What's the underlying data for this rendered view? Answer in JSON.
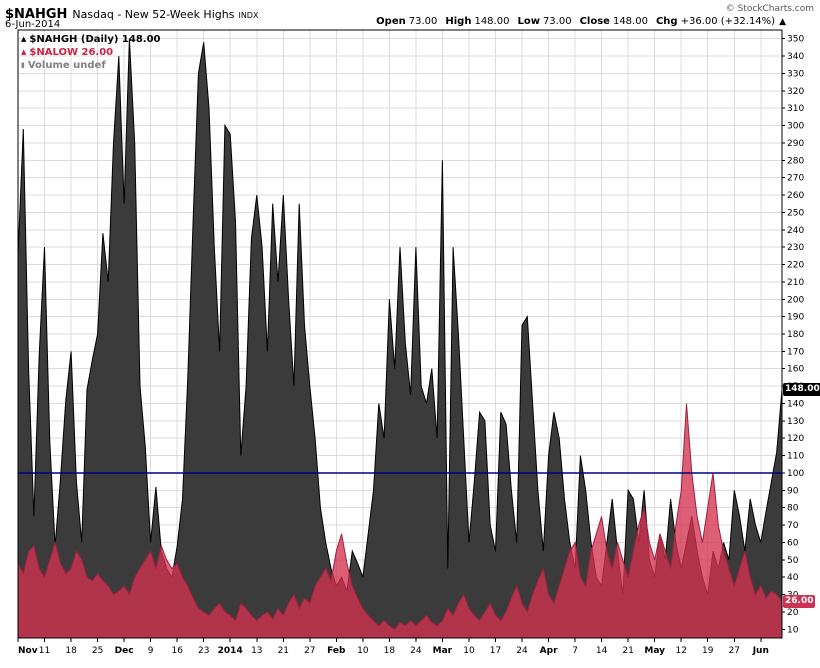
{
  "header": {
    "symbol": "$NAHGH",
    "name": "Nasdaq - New 52-Week Highs",
    "exchange": "INDX",
    "date": "6-Jun-2014",
    "copyright": "© StockCharts.com",
    "ohlc": [
      {
        "label": "Open",
        "value": "73.00"
      },
      {
        "label": "High",
        "value": "148.00"
      },
      {
        "label": "Low",
        "value": "73.00"
      },
      {
        "label": "Close",
        "value": "148.00"
      },
      {
        "label": "Chg",
        "value": "+36.00 (+32.14%)"
      }
    ],
    "chg_direction": "▲"
  },
  "legend": [
    {
      "label": "$NAHGH (Daily) 148.00",
      "color": "#000000",
      "glyph": "▲",
      "icon": "area-series-icon"
    },
    {
      "label": "$NALOW 26.00",
      "color": "#cc2244",
      "glyph": "▲",
      "icon": "area-series-icon"
    },
    {
      "label": "Volume undef",
      "color": "#808080",
      "glyph": "▮",
      "icon": "volume-bars-icon"
    }
  ],
  "price_markers": [
    {
      "value": "148.00",
      "bg": "#000000",
      "fg": "#ffffff",
      "y_value": 148
    },
    {
      "value": "26.00",
      "bg": "#cc3355",
      "fg": "#ffffff",
      "y_value": 26
    }
  ],
  "chart_data": {
    "type": "area",
    "title": "$NAHGH Nasdaq - New 52-Week Highs INDX",
    "xlabel": "",
    "ylabel": "",
    "ylim": [
      5,
      355
    ],
    "grid": true,
    "legend_position": "top-left",
    "y_ticks": [
      10,
      20,
      30,
      40,
      50,
      60,
      70,
      80,
      90,
      100,
      110,
      120,
      130,
      140,
      150,
      160,
      170,
      180,
      190,
      200,
      210,
      220,
      230,
      240,
      250,
      260,
      270,
      280,
      290,
      300,
      310,
      320,
      330,
      340,
      350
    ],
    "x_tick_labels": [
      "Nov",
      "11",
      "18",
      "25",
      "Dec",
      "9",
      "16",
      "23",
      "2014",
      "13",
      "21",
      "27",
      "Feb",
      "10",
      "18",
      "24",
      "Mar",
      "10",
      "17",
      "24",
      "Apr",
      "7",
      "14",
      "21",
      "May",
      "12",
      "19",
      "27",
      "Jun"
    ],
    "x_tick_bold": [
      true,
      false,
      false,
      false,
      true,
      false,
      false,
      false,
      true,
      false,
      false,
      false,
      true,
      false,
      false,
      false,
      true,
      false,
      false,
      false,
      true,
      false,
      false,
      false,
      true,
      false,
      false,
      false,
      true
    ],
    "x_tick_day_step": 5,
    "hline": {
      "value": 100,
      "color": "#000080"
    },
    "series": [
      {
        "name": "$NAHGH",
        "fill": "#3b3b3b",
        "stroke": "#000000",
        "values": [
          225,
          298,
          160,
          75,
          168,
          230,
          118,
          58,
          96,
          142,
          170,
          95,
          60,
          148,
          165,
          180,
          238,
          210,
          290,
          340,
          255,
          350,
          290,
          150,
          115,
          60,
          92,
          55,
          45,
          40,
          58,
          85,
          155,
          245,
          330,
          348,
          310,
          230,
          170,
          300,
          295,
          245,
          110,
          150,
          235,
          260,
          230,
          170,
          255,
          210,
          260,
          200,
          150,
          255,
          185,
          150,
          120,
          80,
          60,
          45,
          35,
          40,
          32,
          55,
          48,
          40,
          65,
          90,
          140,
          120,
          200,
          160,
          230,
          175,
          145,
          230,
          150,
          140,
          160,
          120,
          280,
          45,
          230,
          180,
          120,
          60,
          95,
          135,
          130,
          70,
          55,
          135,
          128,
          90,
          60,
          185,
          190,
          140,
          90,
          55,
          110,
          135,
          120,
          85,
          60,
          45,
          110,
          90,
          60,
          40,
          35,
          60,
          85,
          55,
          30,
          90,
          85,
          60,
          90,
          50,
          40,
          65,
          50,
          85,
          60,
          45,
          60,
          75,
          55,
          40,
          30,
          55,
          45,
          60,
          50,
          90,
          75,
          55,
          85,
          70,
          60,
          78,
          95,
          112,
          148
        ]
      },
      {
        "name": "$NALOW",
        "fill": "rgba(210,50,80,0.78)",
        "stroke": "#a02040",
        "values": [
          48,
          42,
          55,
          58,
          45,
          40,
          50,
          60,
          48,
          42,
          45,
          55,
          50,
          40,
          38,
          42,
          38,
          35,
          30,
          32,
          35,
          30,
          40,
          45,
          50,
          55,
          45,
          58,
          50,
          45,
          48,
          40,
          35,
          28,
          22,
          20,
          18,
          22,
          25,
          20,
          18,
          15,
          25,
          22,
          18,
          15,
          18,
          20,
          16,
          22,
          18,
          25,
          30,
          22,
          28,
          25,
          35,
          40,
          45,
          38,
          55,
          65,
          48,
          35,
          28,
          22,
          18,
          15,
          12,
          15,
          12,
          10,
          14,
          12,
          15,
          12,
          15,
          18,
          14,
          12,
          15,
          22,
          18,
          25,
          30,
          22,
          18,
          15,
          20,
          25,
          18,
          15,
          20,
          28,
          35,
          25,
          20,
          30,
          38,
          45,
          30,
          25,
          35,
          45,
          55,
          60,
          40,
          35,
          55,
          65,
          75,
          55,
          45,
          60,
          50,
          40,
          55,
          70,
          80,
          60,
          50,
          65,
          55,
          45,
          70,
          90,
          140,
          100,
          75,
          60,
          80,
          100,
          70,
          55,
          45,
          35,
          45,
          55,
          40,
          30,
          35,
          28,
          32,
          30,
          26
        ]
      }
    ]
  }
}
